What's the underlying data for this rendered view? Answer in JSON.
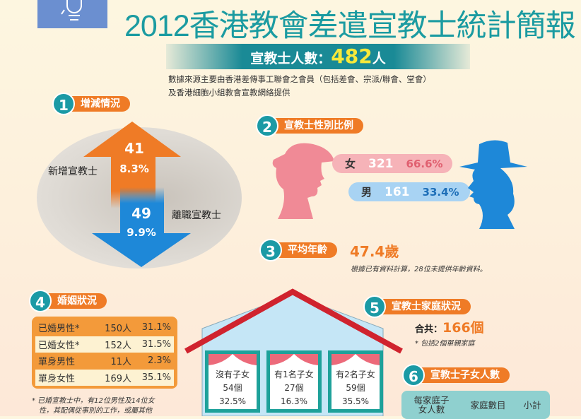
{
  "header": {
    "title": "2012香港教會差遣宣教士統計簡報",
    "total_label": "宣教士人數：",
    "total_value": "482",
    "total_unit": "人",
    "source_line1": "數據來源主要由香港差傳事工聯會之會員（包括差會、宗派/聯會、堂會）",
    "source_line2": "及香港細胞小組教會宣教網絡提供"
  },
  "s1": {
    "num": "1",
    "title": "增減情況",
    "new_label": "新增宣教士",
    "new_count": "41",
    "new_pct": "8.3%",
    "left_label": "離職宣教士",
    "left_count": "49",
    "left_pct": "9.9%"
  },
  "s2": {
    "num": "2",
    "title": "宣教士性別比例",
    "female_label": "女",
    "female_count": "321",
    "female_pct": "66.6%",
    "male_label": "男",
    "male_count": "161",
    "male_pct": "33.4%"
  },
  "s3": {
    "num": "3",
    "title": "平均年齡",
    "value": "47.4歲",
    "note": "根據已有資料計算，28位未提供年齡資料。"
  },
  "s4": {
    "num": "4",
    "title": "婚姻狀況",
    "rows": [
      {
        "label": "已婚男性*",
        "count": "150人",
        "pct": "31.1%"
      },
      {
        "label": "已婚女性*",
        "count": "152人",
        "pct": "31.5%"
      },
      {
        "label": "單身男性",
        "count": "11人",
        "pct": "2.3%"
      },
      {
        "label": "單身女性",
        "count": "169人",
        "pct": "35.1%"
      }
    ],
    "note1": "* 已婚宣教士中，有12位男性及14位女",
    "note2": "性，其配偶從事別的工作，或屬其他"
  },
  "house": {
    "windows": [
      {
        "label": "沒有子女",
        "count": "54個",
        "pct": "32.5%"
      },
      {
        "label": "有1名子女",
        "count": "27個",
        "pct": "16.3%"
      },
      {
        "label": "有2名子女",
        "count": "59個",
        "pct": "35.5%"
      }
    ]
  },
  "s5": {
    "num": "5",
    "title": "宣教士家庭狀況",
    "total_label": "合共：",
    "total_value": "166個",
    "note": "* 包括2個單親家庭"
  },
  "s6": {
    "num": "6",
    "title": "宣教士子女人數",
    "headers": [
      "每家庭子女人數",
      "家庭數目",
      "小計"
    ]
  },
  "colors": {
    "teal": "#1b9aa5",
    "orange": "#ef7b26",
    "blue": "#1e88d8",
    "pink": "#f08a96",
    "roof": "#d0232e"
  }
}
